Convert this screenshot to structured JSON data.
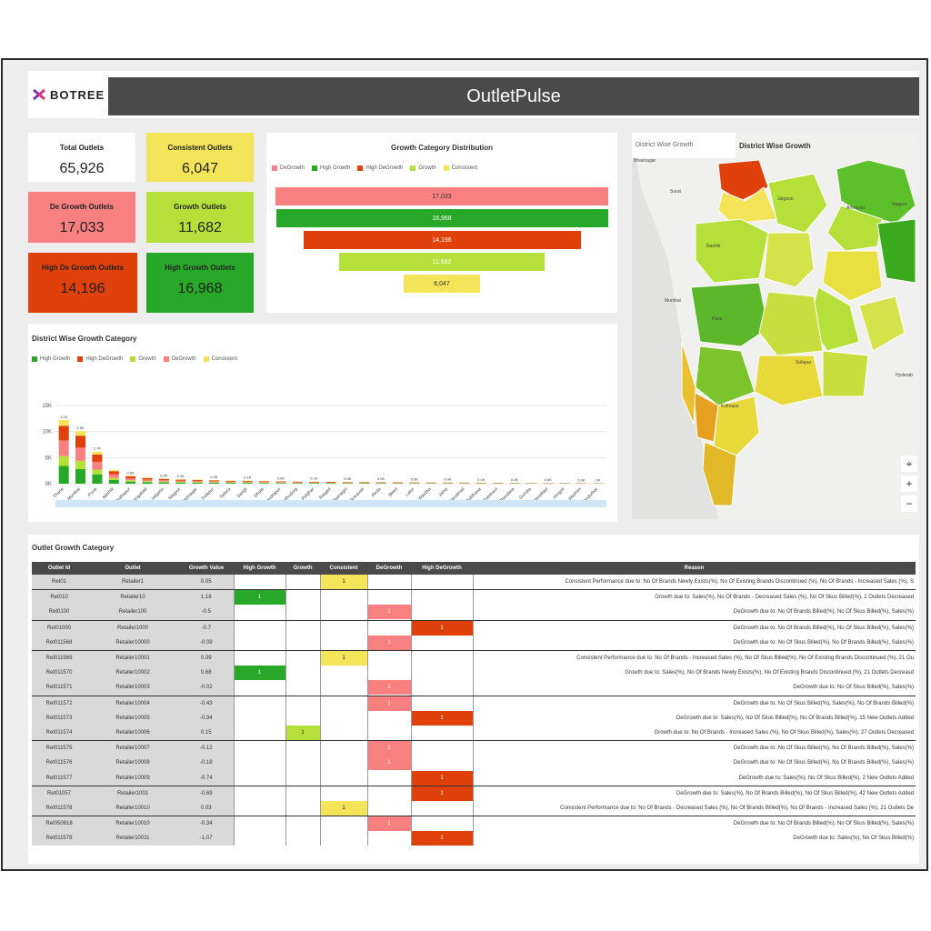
{
  "header": {
    "logo_text": "BOTREE",
    "title": "OutletPulse"
  },
  "kpis": [
    {
      "label": "Total Outlets",
      "value": "65,926",
      "color": "#ffffff"
    },
    {
      "label": "Consistent Outlets",
      "value": "6,047",
      "color": "#f3e45a"
    },
    {
      "label": "De Growth Outlets",
      "value": "17,033",
      "color": "#f98080"
    },
    {
      "label": "Growth Outlets",
      "value": "11,682",
      "color": "#b5e03a"
    },
    {
      "label": "High De Growth Outlets",
      "value": "14,196",
      "color": "#e0400a"
    },
    {
      "label": "High Growth Outlets",
      "value": "16,968",
      "color": "#28a828"
    }
  ],
  "colors": {
    "degrowth": "#f98080",
    "high_growth": "#28a828",
    "high_degrowth": "#e0400a",
    "growth": "#b5e03a",
    "consistent": "#f3e45a"
  },
  "funnel": {
    "title": "Growth Category Distribution",
    "legend": [
      "DeGrowth",
      "High Growth",
      "High DeGrowth",
      "Growth",
      "Consistent"
    ],
    "chart_data": {
      "type": "bar",
      "orientation": "funnel",
      "categories": [
        "DeGrowth",
        "High Growth",
        "High DeGrowth",
        "Growth",
        "Consistent"
      ],
      "values": [
        17033,
        16968,
        14196,
        11682,
        6047
      ],
      "labels": [
        "17,033",
        "16,968",
        "14,196",
        "11,682",
        "6,047"
      ]
    }
  },
  "district_chart": {
    "title": "District Wise Growth Category",
    "legend": [
      "High Growth",
      "High DeGrowth",
      "Growth",
      "DeGrowth",
      "Consistent"
    ],
    "y_ticks": [
      "15K",
      "10K",
      "5K",
      "0K"
    ],
    "chart_data": {
      "type": "bar",
      "stacked": true,
      "ylim": [
        0,
        15000
      ],
      "categories": [
        "Thane",
        "Mumbai",
        "Pune",
        "Nashik",
        "Kolhapur",
        "Aurangabad",
        "Jalgaon",
        "Nagpur",
        "Ahmednagar",
        "Solapur",
        "Satara",
        "Sangli",
        "Dhule",
        "Chandrapur",
        "Sindhudurg",
        "Palghar",
        "Raigad",
        "Ratnagiri",
        "Amravati",
        "Akola",
        "Beed",
        "Latur",
        "Wardha",
        "Jalna",
        "Yavatmal",
        "Buldhana",
        "Parbhani",
        "Bhandara",
        "Gondia",
        "Osmanabad",
        "Hingoli",
        "Washim",
        "Nandurbar"
      ],
      "series": [
        {
          "name": "High Growth",
          "values": [
            3400,
            2800,
            1800,
            700,
            400,
            300,
            250,
            200,
            200,
            180,
            150,
            150,
            130,
            120,
            110,
            100,
            100,
            90,
            90,
            80,
            80,
            70,
            70,
            60,
            60,
            50,
            50,
            50,
            40,
            40,
            40,
            30,
            30
          ]
        },
        {
          "name": "High DeGrowth",
          "values": [
            2800,
            2300,
            1400,
            600,
            350,
            280,
            230,
            200,
            180,
            160,
            140,
            140,
            120,
            110,
            100,
            90,
            90,
            80,
            80,
            70,
            70,
            60,
            60,
            55,
            50,
            45,
            45,
            40,
            35,
            35,
            30,
            30,
            25
          ]
        },
        {
          "name": "Growth",
          "values": [
            1900,
            1600,
            900,
            400,
            250,
            200,
            170,
            150,
            140,
            120,
            110,
            100,
            90,
            80,
            75,
            70,
            65,
            60,
            60,
            55,
            50,
            45,
            45,
            40,
            40,
            35,
            35,
            30,
            30,
            25,
            25,
            20,
            20
          ]
        },
        {
          "name": "DeGrowth",
          "values": [
            3000,
            2500,
            1500,
            700,
            400,
            300,
            250,
            220,
            200,
            180,
            160,
            150,
            140,
            120,
            110,
            100,
            95,
            90,
            85,
            80,
            75,
            70,
            65,
            60,
            55,
            50,
            45,
            40,
            40,
            35,
            30,
            30,
            25
          ]
        },
        {
          "name": "Consistent",
          "values": [
            1100,
            900,
            550,
            200,
            120,
            100,
            90,
            80,
            70,
            60,
            55,
            50,
            45,
            40,
            38,
            35,
            32,
            30,
            30,
            28,
            25,
            22,
            20,
            18,
            16,
            15,
            14,
            12,
            10,
            8,
            7,
            6,
            5
          ]
        }
      ],
      "data_labels": [
        "1.1K",
        "2.5K",
        "1.7K",
        "",
        "0.6K",
        "",
        "0.2K",
        "0.2K",
        "",
        "0.2K",
        "",
        "0.1K",
        "",
        "0.0K",
        "",
        "0.1K",
        "",
        "0.0K",
        "",
        "0.0K",
        "",
        "0.0K",
        "",
        "0.0K",
        "",
        "0.0K",
        "",
        "0.0K",
        "",
        "0.0K",
        "",
        "0.0K",
        "0K"
      ]
    }
  },
  "map": {
    "tab_label": "District Wise Growth",
    "title": "District Wise Growth",
    "place_labels": [
      {
        "text": "Bhavnagar"
      },
      {
        "text": "Surat"
      },
      {
        "text": "Nashik"
      },
      {
        "text": "Jalgaon"
      },
      {
        "text": "Amravati"
      },
      {
        "text": "Nagpur"
      },
      {
        "text": "Mumbai"
      },
      {
        "text": "Pune"
      },
      {
        "text": "Solapur"
      },
      {
        "text": "Kolhapur"
      },
      {
        "text": "Hyderab"
      }
    ],
    "controls": [
      "⌖",
      "+",
      "−"
    ]
  },
  "table": {
    "title": "Outlet Growth Category",
    "columns": [
      "Outlet Id",
      "Outlet",
      "Growth Value",
      "High Growth",
      "Growth",
      "Consistent",
      "DeGrowth",
      "High DeGrowth",
      "Reason"
    ],
    "rows": [
      {
        "id": "Ret01",
        "outlet": "Retailer1",
        "value": "0.05",
        "cat": "consistent",
        "reason": "Consistent Performance due to: No Of Brands Newly Exists(%), No Of Existing Brands Discontinued (%), No Of Brands - Increased Sales (%), S"
      },
      {
        "id": "Ret010",
        "outlet": "Retailer10",
        "value": "1.18",
        "cat": "high_growth",
        "reason": "Growth due to: Sales(%), No Of Brands - Decreased Sales (%), No Of Skus Billed(%), 1 Outlets Decreased"
      },
      {
        "id": "Ret0100",
        "outlet": "Retailer100",
        "value": "-0.5",
        "cat": "degrowth",
        "reason": "DeGrowth due to: No Of Brands Billed(%), No Of Skus Billed(%), Sales(%)"
      },
      {
        "id": "Ret01000",
        "outlet": "Retailer1000",
        "value": "-0.7",
        "cat": "high_degrowth",
        "reason": "DeGrowth due to: No Of Brands Billed(%), No Of Skus Billed(%), Sales(%)"
      },
      {
        "id": "Ret011568",
        "outlet": "Retailer10000",
        "value": "-0.09",
        "cat": "degrowth",
        "reason": "DeGrowth due to: No Of Skus Billed(%), No Of Brands Billed(%), Sales(%)"
      },
      {
        "id": "Ret011569",
        "outlet": "Retailer10001",
        "value": "0.09",
        "cat": "consistent",
        "reason": "Consistent Performance due to: No Of Brands - Increased Sales (%), No Of Skus Billed(%), No Of Existing Brands Discontinued (%), 21 Ou"
      },
      {
        "id": "Ret011570",
        "outlet": "Retailer10002",
        "value": "0.68",
        "cat": "high_growth",
        "reason": "Growth due to: Sales(%), No Of Brands Newly Exists(%), No Of Existing Brands Discontinued (%), 21 Outlets Decreasd"
      },
      {
        "id": "Ret011571",
        "outlet": "Retailer10003",
        "value": "-0.02",
        "cat": "degrowth",
        "reason": "DeGrowth due to: No Of Skus Billed(%), Sales(%)"
      },
      {
        "id": "Ret011572",
        "outlet": "Retailer10004",
        "value": "-0.43",
        "cat": "degrowth",
        "reason": "DeGrowth due to: No Of Skus Billed(%), Sales(%), No Of Brands Billed(%)"
      },
      {
        "id": "Ret011573",
        "outlet": "Retailer10005",
        "value": "-0.94",
        "cat": "high_degrowth",
        "reason": "DeGrowth due to: Sales(%), No Of Skus Billed(%), No Of Brands Billed(%), 15 New Outlets Added"
      },
      {
        "id": "Ret011574",
        "outlet": "Retailer10006",
        "value": "0.15",
        "cat": "growth",
        "reason": "Growth due to: No Of Brands - Increased Sales (%), No Of Skus Billed(%), Sales(%), 27 Outlets Decreased"
      },
      {
        "id": "Ret011575",
        "outlet": "Retailer10007",
        "value": "-0.12",
        "cat": "degrowth",
        "reason": "DeGrowth due to: No Of Skus Billed(%), No Of Brands Billed(%), Sales(%)"
      },
      {
        "id": "Ret011576",
        "outlet": "Retailer10008",
        "value": "-0.18",
        "cat": "degrowth",
        "reason": "DeGrowth due to: No Of Skus Billed(%), No Of Brands Billed(%), Sales(%)"
      },
      {
        "id": "Ret011577",
        "outlet": "Retailer10009",
        "value": "-0.74",
        "cat": "high_degrowth",
        "reason": "DeGrowth due to: Sales(%), No Of Skus Billed(%), 2 New Outlets Added"
      },
      {
        "id": "Ret01057",
        "outlet": "Retailer1001",
        "value": "-0.69",
        "cat": "high_degrowth",
        "reason": "DeGrowth due to: Sales(%), No Of Brands Billed(%), No Of Skus Billed(%), 42 New Outlets Added"
      },
      {
        "id": "Ret011578",
        "outlet": "Retailer10010",
        "value": "0.03",
        "cat": "consistent",
        "reason": "Consistent Performance due to: No Of Brands - Decreased Sales (%), No Of Brands Billed(%), No Of Brands - Increased Sales (%), 21 Outlets De"
      },
      {
        "id": "Ret050818",
        "outlet": "Retailer10010",
        "value": "-0.34",
        "cat": "degrowth",
        "reason": "DeGrowth due to: No Of Brands Billed(%), No Of Skus Billed(%), Sales(%)"
      },
      {
        "id": "Ret011579",
        "outlet": "Retailer10011",
        "value": "-1.07",
        "cat": "high_degrowth",
        "reason": "DeGrowth due to: Sales(%), No Of Skus Billed(%)"
      }
    ]
  }
}
